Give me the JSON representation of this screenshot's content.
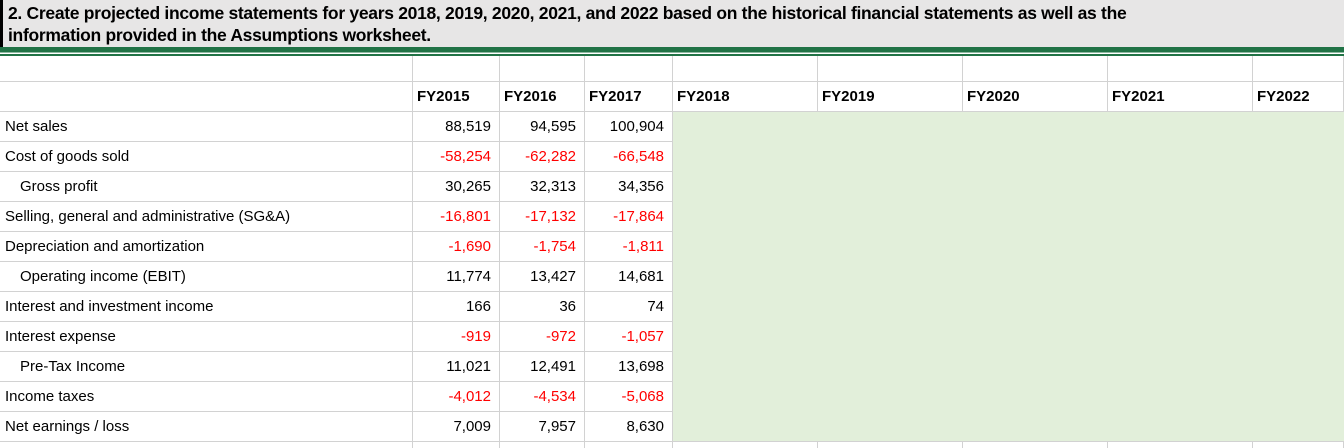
{
  "instruction": {
    "line1": "2. Create projected income statements for years 2018, 2019, 2020, 2021, and 2022 based on the historical financial statements as well as the",
    "line2": "information provided in the Assumptions worksheet."
  },
  "spreadsheet": {
    "column_headers": [
      "FY2015",
      "FY2016",
      "FY2017",
      "FY2018",
      "FY2019",
      "FY2020",
      "FY2021",
      "FY2022"
    ],
    "projected_columns": [
      "FY2018",
      "FY2019",
      "FY2020",
      "FY2021",
      "FY2022"
    ],
    "rows": [
      {
        "label": "Net sales",
        "indent": false,
        "values": [
          "88,519",
          "94,595",
          "100,904"
        ]
      },
      {
        "label": "Cost of goods sold",
        "indent": false,
        "values": [
          "-58,254",
          "-62,282",
          "-66,548"
        ]
      },
      {
        "label": "Gross profit",
        "indent": true,
        "values": [
          "30,265",
          "32,313",
          "34,356"
        ]
      },
      {
        "label": "Selling, general and administrative (SG&A)",
        "indent": false,
        "values": [
          "-16,801",
          "-17,132",
          "-17,864"
        ]
      },
      {
        "label": "Depreciation and amortization",
        "indent": false,
        "values": [
          "-1,690",
          "-1,754",
          "-1,811"
        ]
      },
      {
        "label": "Operating income (EBIT)",
        "indent": true,
        "values": [
          "11,774",
          "13,427",
          "14,681"
        ]
      },
      {
        "label": "Interest and investment income",
        "indent": false,
        "values": [
          "166",
          "36",
          "74"
        ]
      },
      {
        "label": "Interest expense",
        "indent": false,
        "values": [
          "-919",
          "-972",
          "-1,057"
        ]
      },
      {
        "label": "Pre-Tax Income",
        "indent": true,
        "values": [
          "11,021",
          "12,491",
          "13,698"
        ]
      },
      {
        "label": "Income taxes",
        "indent": false,
        "values": [
          "-4,012",
          "-4,534",
          "-5,068"
        ]
      },
      {
        "label": "Net earnings / loss",
        "indent": false,
        "values": [
          "7,009",
          "7,957",
          "8,630"
        ]
      }
    ]
  },
  "colors": {
    "banner_background": "#e7e6e6",
    "accent_green": "#217346",
    "projection_fill": "#e2efda",
    "negative_number": "#ff0000",
    "gridline": "#d2d2d2"
  }
}
